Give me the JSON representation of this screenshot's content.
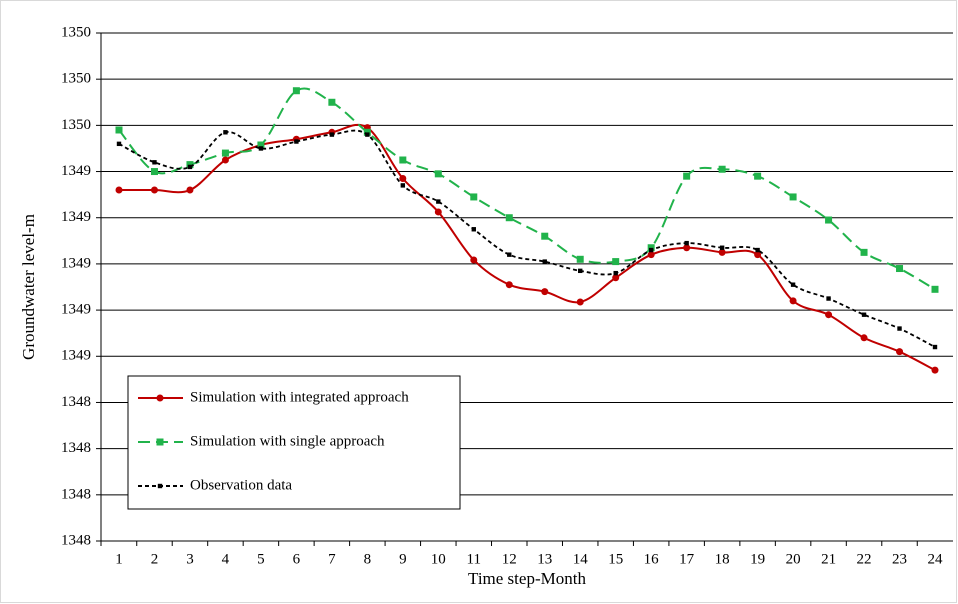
{
  "chart_data": {
    "type": "line",
    "x_label": "Time step-Month",
    "y_label": "Groundwater level-m",
    "categories": [
      "1",
      "2",
      "3",
      "4",
      "5",
      "6",
      "7",
      "8",
      "9",
      "10",
      "11",
      "12",
      "13",
      "14",
      "15",
      "16",
      "17",
      "18",
      "19",
      "20",
      "21",
      "22",
      "23",
      "24"
    ],
    "ylim": [
      1347.8,
      1350.0
    ],
    "yticks": [
      {
        "value": 1347.8,
        "label": "1348"
      },
      {
        "value": 1348.0,
        "label": "1348"
      },
      {
        "value": 1348.2,
        "label": "1348"
      },
      {
        "value": 1348.4,
        "label": "1348"
      },
      {
        "value": 1348.6,
        "label": "1349"
      },
      {
        "value": 1348.8,
        "label": "1349"
      },
      {
        "value": 1349.0,
        "label": "1349"
      },
      {
        "value": 1349.2,
        "label": "1349"
      },
      {
        "value": 1349.4,
        "label": "1349"
      },
      {
        "value": 1349.6,
        "label": "1350"
      },
      {
        "value": 1349.8,
        "label": "1350"
      },
      {
        "value": 1350.0,
        "label": "1350"
      }
    ],
    "grid": true,
    "legend_position": "lower left",
    "series": [
      {
        "name": "Simulation with integrated approach",
        "color": "#c00000",
        "marker": "circle",
        "dash": "solid",
        "values": [
          1349.32,
          1349.32,
          1349.32,
          1349.45,
          1349.515,
          1349.54,
          1349.57,
          1349.59,
          1349.37,
          1349.225,
          1349.017,
          1348.91,
          1348.88,
          1348.835,
          1348.94,
          1349.04,
          1349.07,
          1349.05,
          1349.04,
          1348.84,
          1348.78,
          1348.68,
          1348.62,
          1348.54
        ]
      },
      {
        "name": "Simulation with single approach",
        "color": "#21b34b",
        "marker": "square",
        "dash": "long",
        "values": [
          1349.58,
          1349.4,
          1349.43,
          1349.48,
          1349.515,
          1349.75,
          1349.7,
          1349.57,
          1349.45,
          1349.39,
          1349.29,
          1349.2,
          1349.12,
          1349.02,
          1349.01,
          1349.07,
          1349.38,
          1349.41,
          1349.38,
          1349.29,
          1349.19,
          1349.05,
          1348.98,
          1348.89
        ]
      },
      {
        "name": "Observation data",
        "color": "#000000",
        "marker": "small-square",
        "dash": "short",
        "values": [
          1349.52,
          1349.44,
          1349.42,
          1349.57,
          1349.5,
          1349.53,
          1349.56,
          1349.56,
          1349.34,
          1349.27,
          1349.15,
          1349.04,
          1349.01,
          1348.97,
          1348.96,
          1349.06,
          1349.09,
          1349.07,
          1349.06,
          1348.91,
          1348.85,
          1348.78,
          1348.72,
          1348.64
        ]
      }
    ]
  }
}
